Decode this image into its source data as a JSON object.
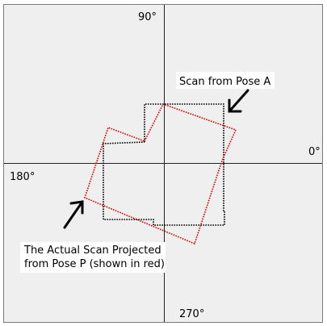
{
  "labels": {
    "angle_90": "90°",
    "angle_0": "0°",
    "angle_180": "180°",
    "angle_270": "270°",
    "scan_pose_a": "Scan from Pose A",
    "actual_scan_line1": "The Actual Scan Projected",
    "actual_scan_line2": "from Pose P (shown in red)"
  },
  "colors": {
    "background": "#efefef",
    "frame": "#7a7a7a",
    "axis": "#222222",
    "scan_a": "#000000",
    "scan_p": "#dd0000",
    "label_box": "#ffffff"
  }
}
